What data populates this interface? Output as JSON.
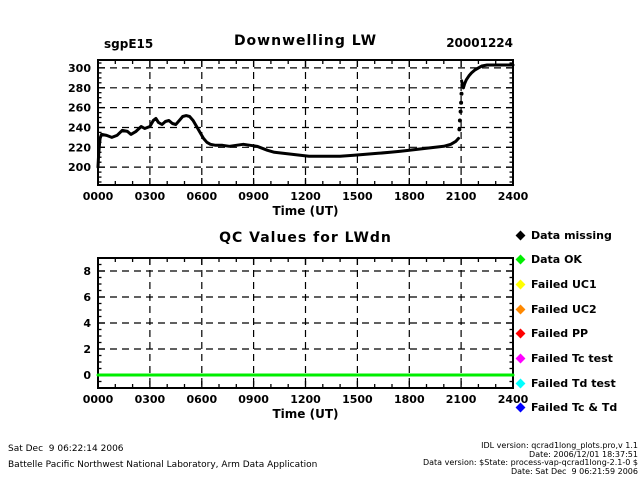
{
  "chart_data": [
    {
      "type": "line",
      "site": "sgpE15",
      "title": "Downwelling LW",
      "date_label": "20001224",
      "xlabel": "Time (UT)",
      "ylabel": "",
      "xlim": [
        0,
        24
      ],
      "ylim": [
        182,
        308
      ],
      "x_tick_values": [
        0,
        3,
        6,
        9,
        12,
        15,
        18,
        21,
        24
      ],
      "x_tick_labels": [
        "0000",
        "0300",
        "0600",
        "0900",
        "1200",
        "1500",
        "1800",
        "2100",
        "2400"
      ],
      "y_ticks": [
        200,
        220,
        240,
        260,
        280,
        300
      ],
      "x_minor_step": 1,
      "y_minor_step": 5,
      "grid": "dashed",
      "legend_position": "none",
      "series": [
        {
          "name": "LWdn",
          "type": "line",
          "color": "#000000",
          "width": 3,
          "points": [
            [
              0.0,
              200
            ],
            [
              0.03,
              210
            ],
            [
              0.07,
              220
            ],
            [
              0.12,
              229
            ],
            [
              0.2,
              233
            ],
            [
              0.5,
              232
            ],
            [
              0.8,
              230
            ],
            [
              1.1,
              232
            ],
            [
              1.4,
              237
            ],
            [
              1.7,
              236
            ],
            [
              1.9,
              233
            ],
            [
              2.2,
              236
            ],
            [
              2.5,
              241
            ],
            [
              2.7,
              239
            ],
            [
              3.0,
              241
            ],
            [
              3.2,
              247
            ],
            [
              3.35,
              249
            ],
            [
              3.5,
              245
            ],
            [
              3.7,
              243
            ],
            [
              3.9,
              246
            ],
            [
              4.1,
              247
            ],
            [
              4.3,
              244
            ],
            [
              4.5,
              243
            ],
            [
              4.7,
              247
            ],
            [
              4.9,
              251
            ],
            [
              5.1,
              252
            ],
            [
              5.3,
              251
            ],
            [
              5.5,
              247
            ],
            [
              5.7,
              241
            ],
            [
              5.9,
              235
            ],
            [
              6.1,
              229
            ],
            [
              6.3,
              225
            ],
            [
              6.5,
              223
            ],
            [
              6.8,
              222
            ],
            [
              7.2,
              222
            ],
            [
              7.6,
              221
            ],
            [
              8.0,
              222
            ],
            [
              8.4,
              223
            ],
            [
              8.8,
              222
            ],
            [
              9.2,
              221
            ],
            [
              9.5,
              219
            ],
            [
              9.8,
              217
            ],
            [
              10.2,
              215
            ],
            [
              10.7,
              214
            ],
            [
              11.2,
              213
            ],
            [
              11.7,
              212
            ],
            [
              12.2,
              211
            ],
            [
              13.0,
              211
            ],
            [
              14.0,
              211
            ],
            [
              14.8,
              212
            ],
            [
              15.5,
              213
            ],
            [
              16.2,
              214
            ],
            [
              16.9,
              215
            ],
            [
              17.5,
              216
            ],
            [
              18.0,
              217
            ],
            [
              18.5,
              218
            ],
            [
              19.0,
              219
            ],
            [
              19.5,
              220
            ],
            [
              20.0,
              221
            ],
            [
              20.4,
              223
            ],
            [
              20.7,
              226
            ],
            [
              20.85,
              229
            ]
          ]
        },
        {
          "name": "LWdn jump gap points",
          "type": "scatter",
          "color": "#000000",
          "size": 2,
          "points": [
            [
              20.9,
              238
            ],
            [
              20.93,
              247
            ],
            [
              20.97,
              256
            ],
            [
              21.0,
              265
            ],
            [
              21.02,
              274
            ]
          ]
        },
        {
          "name": "LWdn after cloud transition",
          "type": "line",
          "color": "#000000",
          "width": 3,
          "points": [
            [
              21.03,
              287
            ],
            [
              21.08,
              283
            ],
            [
              21.13,
              280
            ],
            [
              21.2,
              284
            ],
            [
              21.3,
              288
            ],
            [
              21.45,
              292
            ],
            [
              21.6,
              295
            ],
            [
              21.8,
              298
            ],
            [
              22.0,
              300
            ],
            [
              22.2,
              302
            ],
            [
              22.5,
              303
            ],
            [
              23.0,
              303
            ],
            [
              23.5,
              303
            ],
            [
              24.0,
              303
            ]
          ]
        }
      ]
    },
    {
      "type": "line",
      "title": "QC Values for LWdn",
      "xlabel": "Time (UT)",
      "ylabel": "",
      "xlim": [
        0,
        24
      ],
      "ylim": [
        -1,
        9
      ],
      "x_tick_values": [
        0,
        3,
        6,
        9,
        12,
        15,
        18,
        21,
        24
      ],
      "x_tick_labels": [
        "0000",
        "0300",
        "0600",
        "0900",
        "1200",
        "1500",
        "1800",
        "2100",
        "2400"
      ],
      "y_ticks": [
        0,
        2,
        4,
        6,
        8
      ],
      "x_minor_step": 1,
      "y_minor_step": 0.5,
      "grid": "dashed",
      "legend_position": "right",
      "series": [
        {
          "name": "QC flag (all Data OK)",
          "type": "line",
          "color": "#00ee00",
          "width": 3,
          "points": [
            [
              0,
              0
            ],
            [
              24,
              0
            ]
          ]
        }
      ]
    }
  ],
  "legend": {
    "items": [
      {
        "label": "Data missing",
        "color": "#000000"
      },
      {
        "label": "Data OK",
        "color": "#00ee00"
      },
      {
        "label": "Failed UC1",
        "color": "#ffff00"
      },
      {
        "label": "Failed UC2",
        "color": "#ff8800"
      },
      {
        "label": "Failed PP",
        "color": "#ff0000"
      },
      {
        "label": "Failed Tc test",
        "color": "#ff00ff"
      },
      {
        "label": "Failed Td test",
        "color": "#00ffff"
      },
      {
        "label": "Failed Tc & Td",
        "color": "#0000ff"
      }
    ]
  },
  "footer": {
    "left_line1": "Sat Dec  9 06:22:14 2006",
    "left_line2": "Battelle Pacific Northwest National Laboratory, Arm Data Application",
    "right_lines": [
      "IDL version: qcrad1long_plots.pro,v 1.1",
      "Date: 2006/12/01 18:37:51",
      "Data version: $State: process-vap-qcrad1long-2.1-0 $",
      "Date: Sat Dec  9 06:21:59 2006"
    ]
  }
}
